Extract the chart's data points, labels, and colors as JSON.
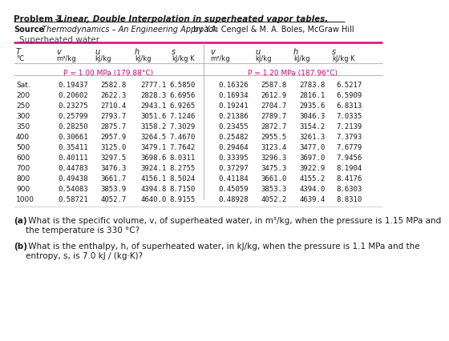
{
  "title_bold": "Problem 3",
  "title_dash": " – ",
  "title_italic": "Linear, Double Interpolation in superheated vapor tables.",
  "source_bold": "Source",
  "source_normal": ": ",
  "source_italic": "Thermodynamics – An Engineering Approach",
  "source_tail": " by Y.A. Cengel & M. A. Boles, McGraw Hill",
  "table_title": "Superheated water",
  "pressure_left": "P = 1.00 MPa (179.88°C)",
  "pressure_right": "P = 1.20 MPa (187.96°C)",
  "col_h1_left": [
    "T",
    "v",
    "u",
    "h",
    "s"
  ],
  "col_h2_left": [
    "°C",
    "m³/kg",
    "kJ/kg",
    "kJ/kg",
    "kJ/kg·K"
  ],
  "col_h1_right": [
    "v",
    "u",
    "h",
    "s"
  ],
  "col_h2_right": [
    "m³/kg",
    "kJ/kg",
    "kJ/kg",
    "kJ/kg·K"
  ],
  "rows": [
    [
      "Sat.",
      "0.19437",
      "2582.8",
      "2777.1",
      "6.5850",
      "0.16326",
      "2587.8",
      "2783.8",
      "6.5217"
    ],
    [
      "200",
      "0.20602",
      "2622.3",
      "2828.3",
      "6.6956",
      "0.16934",
      "2612.9",
      "2816.1",
      "6.5909"
    ],
    [
      "250",
      "0.23275",
      "2710.4",
      "2943.1",
      "6.9265",
      "0.19241",
      "2704.7",
      "2935.6",
      "6.8313"
    ],
    [
      "300",
      "0.25799",
      "2793.7",
      "3051.6",
      "7.1246",
      "0.21386",
      "2789.7",
      "3046.3",
      "7.0335"
    ],
    [
      "350",
      "0.28250",
      "2875.7",
      "3158.2",
      "7.3029",
      "0.23455",
      "2872.7",
      "3154.2",
      "7.2139"
    ],
    [
      "400",
      "0.30661",
      "2957.9",
      "3264.5",
      "7.4670",
      "0.25482",
      "2955.5",
      "3261.3",
      "7.3793"
    ],
    [
      "500",
      "0.35411",
      "3125.0",
      "3479.1",
      "7.7642",
      "0.29464",
      "3123.4",
      "3477.0",
      "7.6779"
    ],
    [
      "600",
      "0.40111",
      "3297.5",
      "3698.6",
      "8.0311",
      "0.33395",
      "3296.3",
      "3697.0",
      "7.9456"
    ],
    [
      "700",
      "0.44783",
      "3476.3",
      "3924.1",
      "8.2755",
      "0.37297",
      "3475.3",
      "3922.9",
      "8.1904"
    ],
    [
      "800",
      "0.49438",
      "3661.7",
      "4156.1",
      "8.5024",
      "0.41184",
      "3661.0",
      "4155.2",
      "8.4176"
    ],
    [
      "900",
      "0.54083",
      "3853.9",
      "4394.8",
      "8.7150",
      "0.45059",
      "3853.3",
      "4394.0",
      "8.6303"
    ],
    [
      "1000",
      "0.58721",
      "4052.7",
      "4640.0",
      "8.9155",
      "0.48928",
      "4052.2",
      "4639.4",
      "8.8310"
    ]
  ],
  "qa_bold": "(a)",
  "qa_normal": " What is the specific volume, v, of superheated water, in m³/kg, when the pressure is 1.15 MPa and\nthe temperature is 330 °C?",
  "qb_bold": "(b)",
  "qb_normal": " What is the enthalpy, h, of superheated water, in kJ/kg, when the pressure is 1.1 MPa and the\nentropy, s, is 7.0 kJ / (kg·K)?",
  "pink": "#E0007A",
  "black": "#1a1a1a",
  "gray": "#666666",
  "bg": "#FFFFFF"
}
